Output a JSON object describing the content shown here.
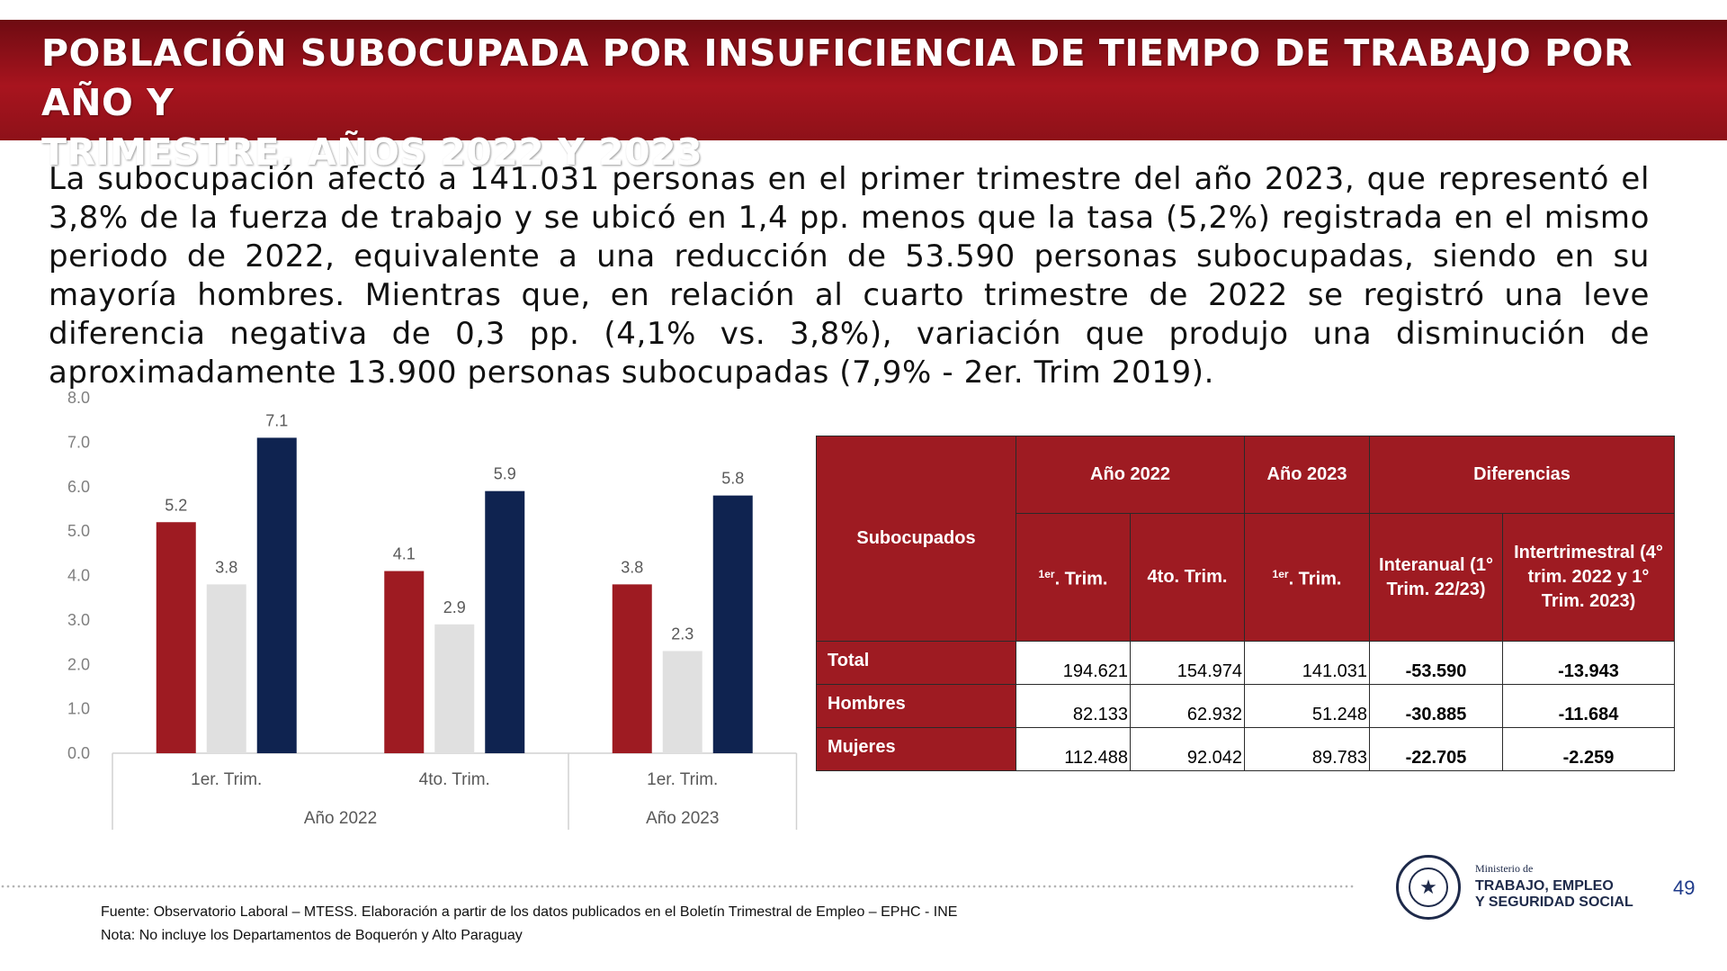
{
  "header": {
    "title_line1": "POBLACIÓN SUBOCUPADA POR INSUFICIENCIA DE TIEMPO DE TRABAJO POR AÑO Y",
    "title_line2": "TRIMESTRE. AÑOS 2022 Y 2023"
  },
  "intro": "La subocupación afectó a 141.031 personas en el primer trimestre del año 2023, que representó el 3,8% de la fuerza de trabajo y se ubicó en 1,4 pp. menos que la tasa (5,2%) registrada en el mismo periodo de 2022, equivalente a una reducción de 53.590 personas subocupadas, siendo en su mayoría hombres. Mientras que, en relación al cuarto trimestre de 2022 se registró una leve diferencia negativa de 0,3 pp. (4,1% vs. 3,8%), variación que produjo una disminución de aproximadamente 13.900 personas subocupadas (7,9% - 2er. Trim 2019).",
  "chart_data": {
    "type": "bar",
    "categories": [
      "1er. Trim.",
      "4to. Trim.",
      "1er. Trim."
    ],
    "groups": [
      {
        "label": "Año 2022",
        "categories": [
          "1er. Trim.",
          "4to. Trim."
        ]
      },
      {
        "label": "Año 2023",
        "categories": [
          "1er. Trim."
        ]
      }
    ],
    "series": [
      {
        "values": [
          5.2,
          4.1,
          3.8
        ],
        "color": "#9e1b22"
      },
      {
        "values": [
          3.8,
          2.9,
          2.3
        ],
        "color": "#e0e0e0"
      },
      {
        "values": [
          7.1,
          5.9,
          5.8
        ],
        "color": "#0f2350"
      }
    ],
    "y_ticks": [
      "0.0",
      "1.0",
      "2.0",
      "3.0",
      "4.0",
      "5.0",
      "6.0",
      "7.0",
      "8.0"
    ],
    "ylim": [
      0,
      8
    ],
    "grid": false
  },
  "table": {
    "corner": "Subocupados",
    "groups": [
      "Año 2022",
      "Año 2023",
      "Diferencias"
    ],
    "sub_sup": "1er",
    "sub_trim": ". Trim.",
    "sub_4to": "4to. Trim.",
    "sub_interanual": "Interanual (1° Trim. 22/23)",
    "sub_intertrim": "Intertrimestral (4° trim. 2022 y 1° Trim. 2023)",
    "rows": [
      {
        "label": "Total",
        "v1": "194.621",
        "v2": "154.974",
        "v3": "141.031",
        "d1": "-53.590",
        "d2": "-13.943"
      },
      {
        "label": "Hombres",
        "v1": "82.133",
        "v2": "62.932",
        "v3": "51.248",
        "d1": "-30.885",
        "d2": "-11.684"
      },
      {
        "label": "Mujeres",
        "v1": "112.488",
        "v2": "92.042",
        "v3": "89.783",
        "d1": "-22.705",
        "d2": "-2.259"
      }
    ]
  },
  "footer": {
    "source": "Fuente: Observatorio Laboral – MTESS. Elaboración a partir de los datos publicados en el Boletín Trimestral de Empleo – EPHC - INE",
    "note": "Nota: No incluye los Departamentos de Boquerón y Alto Paraguay",
    "ministry_small": "Ministerio de",
    "ministry_line1": "TRABAJO, EMPLEO",
    "ministry_line2": "Y SEGURIDAD SOCIAL",
    "page_number": "49"
  }
}
